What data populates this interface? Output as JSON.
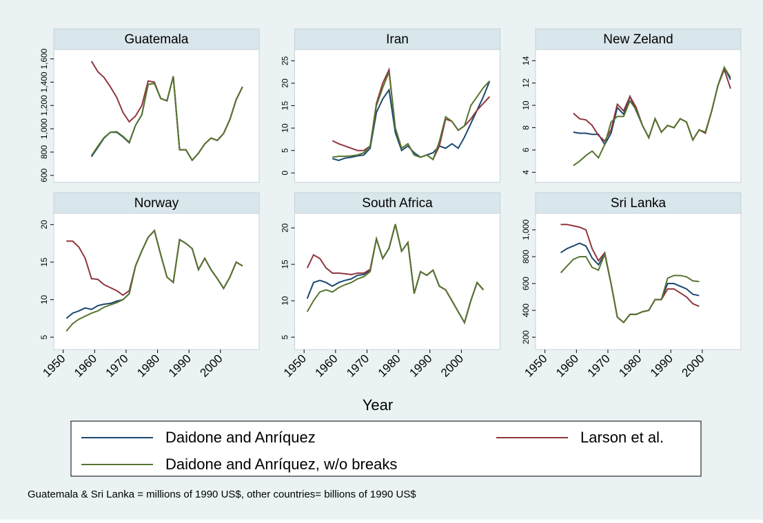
{
  "chart_data": [
    {
      "type": "line",
      "title": "Guatemala",
      "x": [
        1951,
        1953,
        1955,
        1957,
        1959,
        1961,
        1963,
        1965,
        1967,
        1969,
        1971,
        1973,
        1975,
        1977,
        1979,
        1981,
        1983,
        1985,
        1987,
        1989,
        1991,
        1993,
        1995,
        1997,
        1999,
        2001,
        2003,
        2005,
        2007,
        2009
      ],
      "series": [
        {
          "name": "Daidone and Anríquez",
          "color": "#1a476f",
          "values": [
            null,
            null,
            null,
            null,
            760,
            840,
            920,
            970,
            970,
            930,
            880,
            1030,
            1120,
            1380,
            1390,
            1260,
            1240,
            1450,
            820,
            820,
            730,
            790,
            870,
            920,
            900,
            960,
            1080,
            1250,
            1360,
            null
          ]
        },
        {
          "name": "Larson et al.",
          "color": "#90353b",
          "values": [
            null,
            null,
            null,
            null,
            1580,
            1490,
            1440,
            1360,
            1270,
            1140,
            1060,
            1110,
            1200,
            1410,
            1400,
            1260,
            1240,
            1450,
            820,
            820,
            730,
            790,
            870,
            920,
            900,
            960,
            1080,
            1250,
            1360,
            null
          ]
        },
        {
          "name": "Daidone and Anríquez, w/o breaks",
          "color": "#55752f",
          "values": [
            null,
            null,
            null,
            null,
            770,
            850,
            925,
            970,
            975,
            935,
            885,
            1030,
            1120,
            1380,
            1390,
            1260,
            1240,
            1450,
            820,
            820,
            730,
            790,
            870,
            920,
            900,
            960,
            1080,
            1250,
            1360,
            null
          ]
        }
      ],
      "xlim": [
        1947,
        2012.3
      ],
      "ylim": [
        540,
        1680
      ],
      "yticks": [
        600,
        800,
        {
          "value": 1000,
          "label": "1,000"
        },
        {
          "value": 1200,
          "label": "1,200"
        },
        {
          "value": 1400,
          "label": "1,400"
        },
        {
          "value": 1600,
          "label": "1,600"
        }
      ]
    },
    {
      "type": "line",
      "title": "Iran",
      "x": [
        1951,
        1953,
        1955,
        1957,
        1959,
        1961,
        1963,
        1965,
        1967,
        1969,
        1971,
        1973,
        1975,
        1977,
        1979,
        1981,
        1983,
        1985,
        1987,
        1989,
        1991,
        1993,
        1995,
        1997,
        1999,
        2001,
        2003,
        2005,
        2007,
        2009
      ],
      "series": [
        {
          "color": "#1a476f",
          "values": [
            null,
            null,
            null,
            null,
            3.2,
            2.8,
            3.3,
            3.5,
            3.8,
            4.0,
            5.5,
            13.5,
            16.5,
            18.5,
            9,
            5,
            6,
            4.5,
            3.5,
            4,
            4.5,
            6,
            5.5,
            6.5,
            5.5,
            8,
            11,
            14,
            17,
            20.5
          ]
        },
        {
          "color": "#90353b",
          "values": [
            null,
            null,
            null,
            null,
            7.2,
            6.5,
            6,
            5.5,
            5,
            5,
            6,
            15.5,
            20,
            23,
            10,
            5.5,
            6.5,
            4,
            3.5,
            4,
            3,
            6,
            12,
            11.5,
            9.5,
            10.5,
            12,
            14,
            15.5,
            17
          ]
        },
        {
          "color": "#55752f",
          "values": [
            null,
            null,
            null,
            null,
            3.5,
            3.7,
            3.7,
            3.8,
            4,
            4.5,
            6,
            15,
            19,
            22.5,
            10,
            5.5,
            6.5,
            4,
            3.5,
            4,
            3,
            7,
            12.5,
            11.5,
            9.5,
            10.5,
            15,
            17,
            19,
            20.5
          ]
        }
      ],
      "xlim": [
        1947,
        2012.3
      ],
      "ylim": [
        -2.1,
        27.5
      ],
      "yticks": [
        0,
        5,
        10,
        15,
        20,
        25
      ]
    },
    {
      "type": "line",
      "title": "New Zeland",
      "x": [
        1951,
        1953,
        1955,
        1957,
        1959,
        1961,
        1963,
        1965,
        1967,
        1969,
        1971,
        1973,
        1975,
        1977,
        1979,
        1981,
        1983,
        1985,
        1987,
        1989,
        1991,
        1993,
        1995,
        1997,
        1999,
        2001,
        2003,
        2005,
        2007,
        2009
      ],
      "series": [
        {
          "color": "#1a476f",
          "values": [
            null,
            null,
            null,
            null,
            7.6,
            7.5,
            7.5,
            7.4,
            7.4,
            6.5,
            7.5,
            9.8,
            9.2,
            10.8,
            9.5,
            8.2,
            7.1,
            8.8,
            7.6,
            8.2,
            8.0,
            8.8,
            8.5,
            6.9,
            7.8,
            7.6,
            9.5,
            11.8,
            13.4,
            12.3
          ]
        },
        {
          "color": "#90353b",
          "values": [
            null,
            null,
            null,
            null,
            9.3,
            8.8,
            8.7,
            8.2,
            7.3,
            6.8,
            7.8,
            10.1,
            9.5,
            10.8,
            9.8,
            8.2,
            7.1,
            8.8,
            7.6,
            8.2,
            8.0,
            8.8,
            8.5,
            6.9,
            7.8,
            7.5,
            9.5,
            11.8,
            13.2,
            11.5
          ]
        },
        {
          "color": "#55752f",
          "values": [
            null,
            null,
            null,
            null,
            4.6,
            5.0,
            5.5,
            5.9,
            5.3,
            6.5,
            8.5,
            9.0,
            9.0,
            10.4,
            9.6,
            8.2,
            7.1,
            8.8,
            7.6,
            8.2,
            8.0,
            8.8,
            8.5,
            6.9,
            7.8,
            7.6,
            9.5,
            11.8,
            13.4,
            12.5
          ]
        }
      ],
      "xlim": [
        1947,
        2012.3
      ],
      "ylim": [
        3.1,
        15
      ],
      "yticks": [
        4,
        6,
        8,
        10,
        12,
        14
      ]
    },
    {
      "type": "line",
      "title": "Norway",
      "x": [
        1951,
        1953,
        1955,
        1957,
        1959,
        1961,
        1963,
        1965,
        1967,
        1969,
        1971,
        1973,
        1975,
        1977,
        1979,
        1981,
        1983,
        1985,
        1987,
        1989,
        1991,
        1993,
        1995,
        1997,
        1999,
        2001,
        2003,
        2005,
        2007,
        2009
      ],
      "series": [
        {
          "color": "#1a476f",
          "values": [
            7.5,
            8.2,
            8.5,
            8.9,
            8.7,
            9.2,
            9.4,
            9.5,
            9.8,
            10,
            10.8,
            14.5,
            16.5,
            18.3,
            19.2,
            16,
            13,
            12.3,
            18,
            17.5,
            16.8,
            14,
            15.5,
            14,
            12.8,
            11.5,
            13,
            15,
            14.5,
            null
          ]
        },
        {
          "color": "#90353b",
          "values": [
            17.8,
            17.8,
            17,
            15.5,
            12.8,
            12.7,
            12,
            11.6,
            11.2,
            10.6,
            11.2,
            14.5,
            16.5,
            18.3,
            19.2,
            16,
            13,
            12.3,
            18,
            17.5,
            16.8,
            14,
            15.5,
            14,
            12.8,
            11.5,
            13,
            15,
            14.5,
            null
          ]
        },
        {
          "color": "#55752f",
          "values": [
            5.8,
            6.8,
            7.4,
            7.8,
            8.2,
            8.5,
            9.0,
            9.3,
            9.6,
            10,
            10.8,
            14.5,
            16.5,
            18.3,
            19.2,
            16,
            13,
            12.3,
            18,
            17.5,
            16.8,
            14,
            15.5,
            14,
            12.8,
            11.5,
            13,
            15,
            14.5,
            null
          ]
        }
      ],
      "xlim": [
        1947,
        2012.3
      ],
      "xticks": [
        1950,
        1960,
        1970,
        1980,
        1990,
        2000
      ],
      "ylim": [
        3.35,
        21.5
      ],
      "yticks": [
        5,
        10,
        15,
        20
      ]
    },
    {
      "type": "line",
      "title": "South Africa",
      "x": [
        1951,
        1953,
        1955,
        1957,
        1959,
        1961,
        1963,
        1965,
        1967,
        1969,
        1971,
        1973,
        1975,
        1977,
        1979,
        1981,
        1983,
        1985,
        1987,
        1989,
        1991,
        1993,
        1995,
        1997,
        1999,
        2001,
        2003,
        2005,
        2007,
        2009
      ],
      "series": [
        {
          "color": "#1a476f",
          "values": [
            10.3,
            12.5,
            12.8,
            12.5,
            12.0,
            12.5,
            12.8,
            13.0,
            13.5,
            13.6,
            14.2,
            18.5,
            15.8,
            17.2,
            20.5,
            16.8,
            18,
            11,
            14,
            13.5,
            14.2,
            12,
            11.5,
            10,
            8.5,
            7.0,
            10,
            12.5,
            11.5,
            null
          ]
        },
        {
          "color": "#90353b",
          "values": [
            14.5,
            16.3,
            15.8,
            14.5,
            13.8,
            13.8,
            13.7,
            13.6,
            13.8,
            13.8,
            14.3,
            18.5,
            15.8,
            17.2,
            20.5,
            16.8,
            18,
            11,
            14,
            13.5,
            14.2,
            12,
            11.5,
            10,
            8.5,
            7.0,
            10,
            12.5,
            11.5,
            null
          ]
        },
        {
          "color": "#55752f",
          "values": [
            8.5,
            10,
            11.2,
            11.5,
            11.2,
            11.8,
            12.2,
            12.5,
            13.0,
            13.3,
            14,
            18.5,
            15.8,
            17.2,
            20.5,
            16.8,
            18,
            11,
            14,
            13.5,
            14.2,
            12,
            11.5,
            10,
            8.5,
            7.0,
            10,
            12.5,
            11.5,
            null
          ]
        }
      ],
      "xlim": [
        1947,
        2012.3
      ],
      "xticks": [
        1950,
        1960,
        1970,
        1980,
        1990,
        2000
      ],
      "ylim": [
        3.3,
        22
      ],
      "yticks": [
        5,
        10,
        15,
        20
      ]
    },
    {
      "type": "line",
      "title": "Sri Lanka",
      "x": [
        1951,
        1953,
        1955,
        1957,
        1959,
        1961,
        1963,
        1965,
        1967,
        1969,
        1971,
        1973,
        1975,
        1977,
        1979,
        1981,
        1983,
        1985,
        1987,
        1989,
        1991,
        1993,
        1995,
        1997,
        1999,
        2001,
        2003,
        2005,
        2007,
        2009
      ],
      "series": [
        {
          "color": "#1a476f",
          "values": [
            null,
            null,
            830,
            860,
            880,
            900,
            880,
            790,
            740,
            820,
            600,
            350,
            310,
            370,
            370,
            390,
            400,
            480,
            480,
            600,
            600,
            580,
            560,
            520,
            510,
            null,
            null,
            null,
            null,
            null
          ]
        },
        {
          "color": "#90353b",
          "values": [
            null,
            null,
            1040,
            1040,
            1030,
            1020,
            1000,
            860,
            770,
            830,
            600,
            350,
            310,
            370,
            370,
            390,
            400,
            480,
            480,
            560,
            560,
            530,
            500,
            450,
            430,
            null,
            null,
            null,
            null,
            null
          ]
        },
        {
          "color": "#55752f",
          "values": [
            null,
            null,
            680,
            730,
            780,
            800,
            800,
            720,
            700,
            820,
            600,
            350,
            310,
            370,
            370,
            390,
            400,
            480,
            480,
            640,
            660,
            660,
            650,
            620,
            615,
            null,
            null,
            null,
            null,
            null
          ]
        }
      ],
      "xlim": [
        1947,
        2012.3
      ],
      "xticks": [
        1950,
        1960,
        1970,
        1980,
        1990,
        2000
      ],
      "ylim": [
        108,
        1123
      ],
      "yticks": [
        200,
        400,
        600,
        800,
        {
          "value": 1000,
          "label": "1,000"
        }
      ]
    }
  ],
  "xlabel": "Year",
  "note": "Guatemala & Sri Lanka = millions of 1990 US$, other countries= billions of 1990 US$"
}
